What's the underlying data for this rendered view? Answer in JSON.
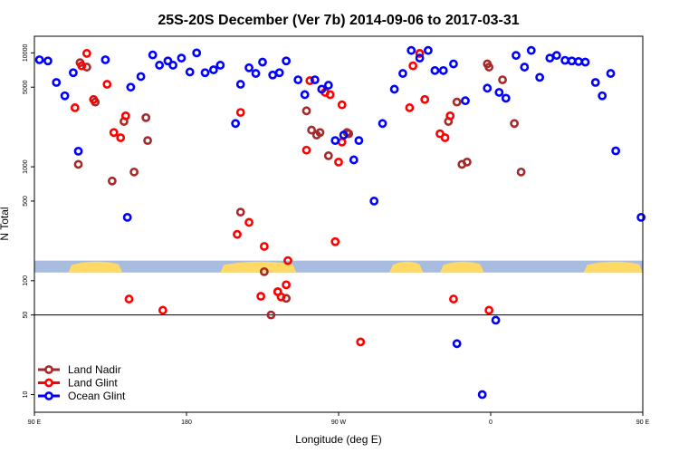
{
  "chart_data": {
    "type": "scatter",
    "title": "25S-20S December (Ver 7b)   2014-09-06 to 2017-03-31",
    "xlabel": "Longitude (deg E)",
    "ylabel": "N Total",
    "x_scale": "linear",
    "y_scale": "log",
    "xlim": [
      90,
      450
    ],
    "ylim": [
      7,
      14000
    ],
    "x_ticks": [
      90,
      180,
      270,
      360,
      450,
      540
    ],
    "x_tick_labels": [
      "90 E",
      "180",
      "90 W",
      "0",
      "90 E",
      "180"
    ],
    "y_ticks": [
      10,
      50,
      100,
      500,
      1000,
      5000,
      10000
    ],
    "y_tick_labels": [
      "10",
      "50",
      "100",
      "500",
      "1000",
      "5000",
      "10000"
    ],
    "reference_line": 50,
    "grid": false,
    "legend_position": "bottom-left",
    "series": [
      {
        "name": "Land Nadir",
        "color": "#a52a2a",
        "points": [
          [
            116,
            1050
          ],
          [
            117,
            8200
          ],
          [
            121,
            7500
          ],
          [
            126,
            3700
          ],
          [
            136,
            750
          ],
          [
            143,
            2500
          ],
          [
            149,
            900
          ],
          [
            156,
            2700
          ],
          [
            157,
            1700
          ],
          [
            212,
            400
          ],
          [
            226,
            120
          ],
          [
            230,
            50
          ],
          [
            234,
            80
          ],
          [
            239,
            70
          ],
          [
            251,
            3100
          ],
          [
            254,
            2100
          ],
          [
            257,
            1900
          ],
          [
            259,
            2000
          ],
          [
            264,
            1250
          ],
          [
            275,
            2000
          ],
          [
            276,
            1950
          ],
          [
            340,
            3700
          ],
          [
            335,
            2500
          ],
          [
            343,
            1050
          ],
          [
            346,
            1100
          ],
          [
            358,
            8000
          ],
          [
            359,
            7500
          ],
          [
            367,
            5800
          ],
          [
            374,
            2400
          ],
          [
            378,
            900
          ]
        ]
      },
      {
        "name": "Land Glint",
        "color": "#ff0000",
        "points": [
          [
            114,
            3300
          ],
          [
            118,
            7700
          ],
          [
            121,
            9900
          ],
          [
            125,
            3900
          ],
          [
            133,
            5300
          ],
          [
            137,
            2000
          ],
          [
            141,
            1800
          ],
          [
            144,
            2800
          ],
          [
            146,
            69
          ],
          [
            166,
            55
          ],
          [
            210,
            255
          ],
          [
            212,
            3000
          ],
          [
            217,
            325
          ],
          [
            224,
            73
          ],
          [
            226,
            200
          ],
          [
            234,
            80
          ],
          [
            236,
            72
          ],
          [
            239,
            92
          ],
          [
            240,
            150
          ],
          [
            251,
            1400
          ],
          [
            253,
            5700
          ],
          [
            262,
            4500
          ],
          [
            265,
            4300
          ],
          [
            268,
            220
          ],
          [
            270,
            1100
          ],
          [
            272,
            3500
          ],
          [
            272,
            1650
          ],
          [
            283,
            29
          ],
          [
            312,
            3300
          ],
          [
            314,
            7700
          ],
          [
            318,
            9900
          ],
          [
            321,
            3900
          ],
          [
            330,
            1950
          ],
          [
            333,
            1800
          ],
          [
            336,
            2800
          ],
          [
            338,
            69
          ],
          [
            359,
            55
          ]
        ]
      },
      {
        "name": "Ocean Glint",
        "color": "#0000ff",
        "points": [
          [
            93,
            8700
          ],
          [
            98,
            8500
          ],
          [
            103,
            5500
          ],
          [
            108,
            4200
          ],
          [
            113,
            6700
          ],
          [
            116,
            1370
          ],
          [
            132,
            8700
          ],
          [
            145,
            360
          ],
          [
            147,
            5000
          ],
          [
            153,
            6200
          ],
          [
            160,
            9600
          ],
          [
            164,
            7800
          ],
          [
            169,
            8500
          ],
          [
            172,
            7800
          ],
          [
            177,
            9000
          ],
          [
            182,
            6800
          ],
          [
            186,
            10000
          ],
          [
            191,
            6700
          ],
          [
            196,
            7100
          ],
          [
            200,
            7800
          ],
          [
            209,
            2400
          ],
          [
            212,
            5300
          ],
          [
            217,
            7400
          ],
          [
            221,
            6600
          ],
          [
            225,
            8300
          ],
          [
            231,
            6400
          ],
          [
            235,
            6700
          ],
          [
            239,
            8500
          ],
          [
            246,
            5800
          ],
          [
            250,
            4300
          ],
          [
            256,
            5800
          ],
          [
            260,
            4800
          ],
          [
            264,
            5200
          ],
          [
            268,
            1700
          ],
          [
            273,
            1900
          ],
          [
            279,
            1150
          ],
          [
            282,
            1700
          ],
          [
            291,
            500
          ],
          [
            296,
            2400
          ],
          [
            303,
            4800
          ],
          [
            308,
            6600
          ],
          [
            313,
            10500
          ],
          [
            318,
            9000
          ],
          [
            323,
            10500
          ],
          [
            327,
            7000
          ],
          [
            332,
            7000
          ],
          [
            338,
            8000
          ],
          [
            345,
            3800
          ],
          [
            340,
            28
          ],
          [
            355,
            10
          ],
          [
            358,
            4900
          ],
          [
            363,
            45
          ],
          [
            365,
            4500
          ],
          [
            369,
            4000
          ],
          [
            375,
            9500
          ],
          [
            380,
            7500
          ],
          [
            384,
            10500
          ],
          [
            389,
            6100
          ],
          [
            395,
            9000
          ],
          [
            399,
            9500
          ],
          [
            404,
            8600
          ],
          [
            408,
            8500
          ],
          [
            412,
            8400
          ],
          [
            416,
            8300
          ],
          [
            422,
            5500
          ],
          [
            426,
            4200
          ],
          [
            431,
            6600
          ],
          [
            434,
            1380
          ],
          [
            449,
            360
          ],
          [
            451,
            5000
          ],
          [
            456,
            6100
          ],
          [
            464,
            9400
          ],
          [
            468,
            7700
          ],
          [
            472,
            8300
          ],
          [
            476,
            7900
          ]
        ]
      }
    ],
    "background_map_strip": {
      "y_range_log": [
        118,
        150
      ],
      "ocean_color": "#a7bcdf",
      "land_color": "#ffd966",
      "land_segments_lon": [
        [
          110,
          142
        ],
        [
          200,
          245
        ],
        [
          300,
          320
        ],
        [
          330,
          356
        ],
        [
          415,
          460
        ]
      ]
    }
  }
}
